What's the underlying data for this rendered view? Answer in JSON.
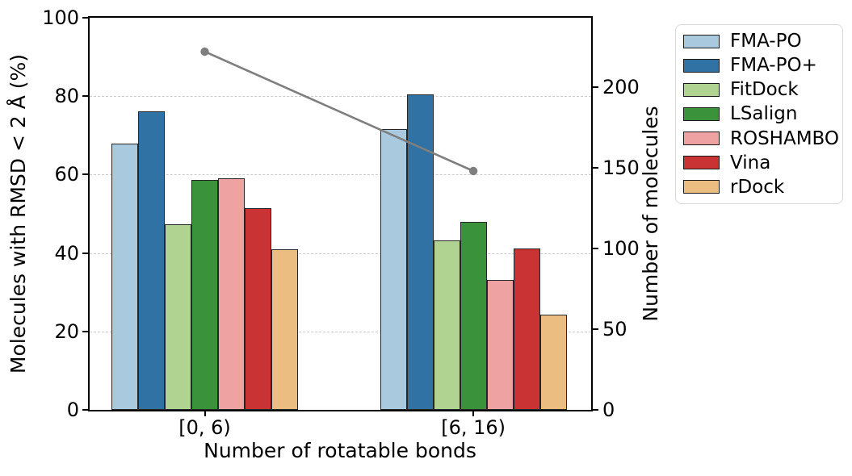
{
  "chart_data": {
    "type": "bar+line",
    "title": "",
    "xlabel": "Number of rotatable bonds",
    "ylabel_left": "Molecules with RMSD < 2 Å (%)",
    "ylabel_right": "Number of molecules",
    "categories": [
      "[0, 6)",
      "[6, 16)"
    ],
    "left_axis": {
      "min": 0,
      "max": 100,
      "ticks": [
        0,
        20,
        40,
        60,
        80,
        100
      ],
      "gridline_ticks": [
        20,
        40,
        60,
        80
      ]
    },
    "right_axis": {
      "min": 0,
      "max": 243,
      "ticks": [
        0,
        50,
        100,
        150,
        200
      ]
    },
    "series": [
      {
        "name": "FMA-PO",
        "color": "#a9cade",
        "values": [
          68.0,
          71.6
        ]
      },
      {
        "name": "FMA-PO+",
        "color": "#2f72a3",
        "values": [
          76.1,
          80.4
        ]
      },
      {
        "name": "FitDock",
        "color": "#b0d392",
        "values": [
          47.3,
          43.2
        ]
      },
      {
        "name": "LSalign",
        "color": "#3a923a",
        "values": [
          58.6,
          48.0
        ]
      },
      {
        "name": "ROSHAMBO",
        "color": "#efa2a2",
        "values": [
          59.0,
          33.1
        ]
      },
      {
        "name": "Vina",
        "color": "#c93334",
        "values": [
          51.4,
          41.2
        ]
      },
      {
        "name": "rDock",
        "color": "#ecbd80",
        "values": [
          41.0,
          24.3
        ]
      }
    ],
    "line_series": {
      "name": "Number of molecules",
      "axis": "right",
      "color": "#7f7f7f",
      "values": [
        222,
        148
      ]
    },
    "legend": {
      "position": "outside-top-right",
      "labels": [
        "FMA-PO",
        "FMA-PO+",
        "FitDock",
        "LSalign",
        "ROSHAMBO",
        "Vina",
        "rDock"
      ]
    },
    "styles": {
      "grid_color": "#cbcbcb",
      "bar_edge_color": "#262626",
      "spine_color": "#000000",
      "line_color": "#7f7f7f",
      "text_color": "#000000"
    }
  }
}
